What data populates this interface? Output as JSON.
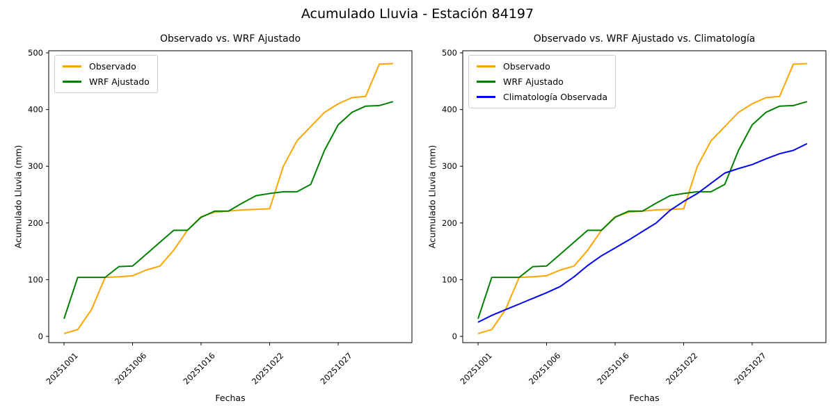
{
  "figure": {
    "title": "Acumulado Lluvia - Estación 84197"
  },
  "chart_data": [
    {
      "type": "line",
      "title": "Observado vs. WRF Ajustado",
      "xlabel": "Fechas",
      "ylabel": "Acumulado Lluvia (mm)",
      "ylim": [
        0,
        500
      ],
      "yticks": [
        0,
        100,
        200,
        300,
        400,
        500
      ],
      "grid": false,
      "legend_position": "upper left",
      "x_point_count": 25,
      "xtick_positions": [
        0,
        5,
        10,
        15,
        20
      ],
      "xtick_labels": [
        "20251001",
        "20251006",
        "20251016",
        "20251022",
        "20251027"
      ],
      "series": [
        {
          "name": "Observado",
          "color": "#FFA500",
          "values": [
            5,
            12,
            47,
            104,
            105,
            107,
            117,
            124,
            152,
            187,
            211,
            219,
            221,
            223,
            224,
            225,
            300,
            345,
            370,
            395,
            410,
            421,
            423,
            480,
            481
          ]
        },
        {
          "name": "WRF Ajustado",
          "color": "#008000",
          "values": [
            31,
            104,
            104,
            104,
            123,
            124,
            145,
            166,
            187,
            187,
            210,
            221,
            221,
            235,
            248,
            252,
            255,
            255,
            268,
            328,
            373,
            395,
            406,
            407,
            414
          ]
        }
      ]
    },
    {
      "type": "line",
      "title": "Observado vs. WRF Ajustado vs. Climatología",
      "xlabel": "Fechas",
      "ylabel": "Acumulado Lluvia (mm)",
      "ylim": [
        0,
        500
      ],
      "yticks": [
        0,
        100,
        200,
        300,
        400,
        500
      ],
      "grid": false,
      "legend_position": "upper left",
      "x_point_count": 25,
      "xtick_positions": [
        0,
        5,
        10,
        15,
        20
      ],
      "xtick_labels": [
        "20251001",
        "20251006",
        "20251016",
        "20251022",
        "20251027"
      ],
      "series": [
        {
          "name": "Observado",
          "color": "#FFA500",
          "values": [
            5,
            12,
            47,
            104,
            105,
            107,
            117,
            124,
            152,
            187,
            211,
            219,
            221,
            223,
            224,
            225,
            300,
            345,
            370,
            395,
            410,
            421,
            423,
            480,
            481
          ]
        },
        {
          "name": "WRF Ajustado",
          "color": "#008000",
          "values": [
            31,
            104,
            104,
            104,
            123,
            124,
            145,
            166,
            187,
            187,
            210,
            221,
            221,
            235,
            248,
            252,
            255,
            255,
            268,
            328,
            373,
            395,
            406,
            407,
            414
          ]
        },
        {
          "name": "Climatología Observada",
          "color": "#0000FF",
          "values": [
            25,
            37,
            47,
            57,
            67,
            77,
            88,
            105,
            125,
            142,
            156,
            170,
            185,
            200,
            222,
            238,
            252,
            270,
            288,
            296,
            303,
            313,
            322,
            328,
            340
          ]
        }
      ]
    }
  ]
}
